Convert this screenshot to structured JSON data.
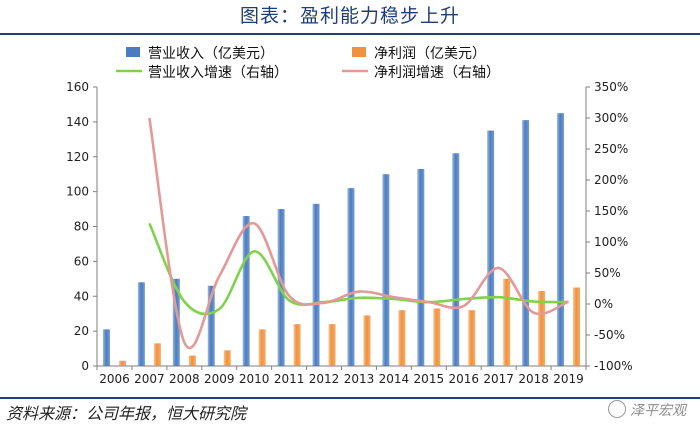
{
  "caption": "图表：盈利能力稳步上升",
  "source": "资料来源：公司年报，恒大研究院",
  "watermark": "泽平宏观",
  "chart_data": {
    "type": "bar",
    "categories": [
      "2006",
      "2007",
      "2008",
      "2009",
      "2010",
      "2011",
      "2012",
      "2013",
      "2014",
      "2015",
      "2016",
      "2017",
      "2018",
      "2019"
    ],
    "series": [
      {
        "name": "营业收入（亿美元）",
        "kind": "bar",
        "axis": "left",
        "color": "#4a7cc0",
        "values": [
          21,
          48,
          50,
          46,
          86,
          90,
          93,
          102,
          110,
          113,
          122,
          135,
          141,
          145
        ]
      },
      {
        "name": "净利润（亿美元）",
        "kind": "bar",
        "axis": "left",
        "color": "#f0913d",
        "values": [
          3,
          13,
          6,
          9,
          21,
          24,
          24,
          29,
          32,
          33,
          32,
          50,
          43,
          45
        ]
      },
      {
        "name": "营业收入增速（右轴）",
        "kind": "line",
        "axis": "right",
        "color": "#7fd34a",
        "values": [
          null,
          130,
          4,
          -8,
          85,
          6,
          3,
          10,
          8,
          3,
          8,
          11,
          4,
          3
        ]
      },
      {
        "name": "净利润增速（右轴）",
        "kind": "line",
        "axis": "right",
        "color": "#e39a97",
        "values": [
          null,
          300,
          -62,
          45,
          130,
          13,
          2,
          20,
          11,
          3,
          -3,
          58,
          -14,
          4
        ]
      }
    ],
    "y_left": {
      "min": 0,
      "max": 160,
      "ticks": [
        0,
        20,
        40,
        60,
        80,
        100,
        120,
        140,
        160
      ]
    },
    "y_right": {
      "min": -100,
      "max": 350,
      "ticks": [
        "-100%",
        "-50%",
        "0%",
        "50%",
        "100%",
        "150%",
        "200%",
        "250%",
        "300%",
        "350%"
      ],
      "tick_values": [
        -100,
        -50,
        0,
        50,
        100,
        150,
        200,
        250,
        300,
        350
      ]
    },
    "legend_position": "top-center",
    "grid": false
  }
}
